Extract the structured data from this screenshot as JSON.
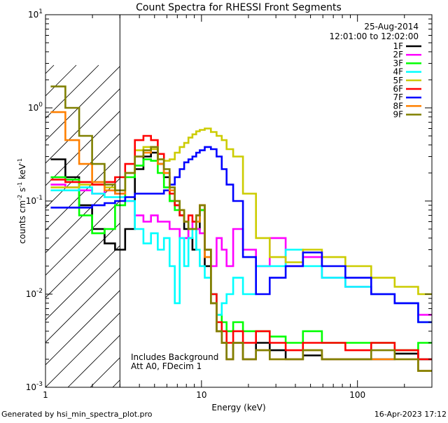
{
  "chart_data": {
    "type": "line",
    "title": "Count Spectra for RHESSI Front Segments",
    "xlabel": "Energy (keV)",
    "ylabel_parts": [
      "counts cm",
      "-2",
      " s",
      "-1",
      " keV",
      "-1"
    ],
    "xlim": [
      1.0,
      300.0
    ],
    "ylim": [
      0.001,
      10.0
    ],
    "x_scale": "log",
    "y_scale": "log",
    "x_tick_labels": [
      {
        "value": 1,
        "label": "1"
      },
      {
        "value": 10,
        "label": "10"
      },
      {
        "value": 100,
        "label": "100"
      }
    ],
    "y_tick_labels": [
      {
        "value": 0.001,
        "base": "10",
        "exp": "-3"
      },
      {
        "value": 0.01,
        "base": "10",
        "exp": "-2"
      },
      {
        "value": 0.1,
        "base": "10",
        "exp": "-1"
      },
      {
        "value": 1,
        "base": "10",
        "exp": "0"
      },
      {
        "value": 10,
        "base": "10",
        "exp": "1"
      }
    ],
    "hatched_region_keV": [
      1.0,
      3.0
    ],
    "date": "25-Aug-2014",
    "time_range": "12:01:00 to 12:02:00",
    "annotations": [
      "Includes Background",
      "Att A0, FDecim 1"
    ],
    "series": [
      {
        "name": "1F",
        "color": "#000000",
        "x": [
          1.2,
          1.5,
          1.8,
          2.2,
          2.6,
          3.0,
          3.5,
          4.0,
          4.5,
          5.0,
          5.5,
          6.0,
          6.5,
          7.0,
          7.5,
          8.0,
          8.5,
          9.0,
          9.5,
          10,
          11,
          12,
          13,
          14,
          15,
          17,
          20,
          25,
          30,
          40,
          50,
          70,
          100,
          150,
          200,
          300
        ],
        "y": [
          0.28,
          0.18,
          0.09,
          0.05,
          0.035,
          0.03,
          0.05,
          0.22,
          0.3,
          0.33,
          0.25,
          0.18,
          0.1,
          0.09,
          0.07,
          0.05,
          0.04,
          0.03,
          0.05,
          0.08,
          0.02,
          0.008,
          0.004,
          0.003,
          0.002,
          0.003,
          0.002,
          0.003,
          0.0025,
          0.002,
          0.0022,
          0.002,
          0.002,
          0.002,
          0.0023,
          0.002
        ]
      },
      {
        "name": "2F",
        "color": "#ff00ff",
        "x": [
          1.2,
          1.5,
          1.8,
          2.2,
          2.6,
          3.0,
          3.5,
          4.0,
          4.5,
          5.0,
          5.5,
          6.0,
          6.5,
          7.0,
          7.5,
          8.0,
          8.5,
          9.0,
          9.5,
          10,
          11,
          12,
          13,
          14,
          15,
          17,
          20,
          25,
          30,
          40,
          50,
          70,
          100,
          150,
          200,
          300
        ],
        "y": [
          0.15,
          0.14,
          0.13,
          0.12,
          0.13,
          0.12,
          0.1,
          0.07,
          0.06,
          0.07,
          0.06,
          0.06,
          0.05,
          0.05,
          0.04,
          0.04,
          0.05,
          0.06,
          0.05,
          0.045,
          0.03,
          0.02,
          0.04,
          0.03,
          0.02,
          0.05,
          0.03,
          0.02,
          0.04,
          0.02,
          0.025,
          0.015,
          0.012,
          0.01,
          0.008,
          0.006
        ]
      },
      {
        "name": "3F",
        "color": "#00ff00",
        "x": [
          1.2,
          1.5,
          1.8,
          2.2,
          2.6,
          3.0,
          3.5,
          4.0,
          4.5,
          5.0,
          5.5,
          6.0,
          6.5,
          7.0,
          7.5,
          8.0,
          8.5,
          9.0,
          9.5,
          10,
          11,
          12,
          13,
          14,
          15,
          17,
          20,
          25,
          30,
          40,
          50,
          70,
          100,
          150,
          200,
          300
        ],
        "y": [
          0.18,
          0.17,
          0.07,
          0.045,
          0.05,
          0.09,
          0.18,
          0.24,
          0.28,
          0.27,
          0.2,
          0.14,
          0.1,
          0.08,
          0.07,
          0.06,
          0.05,
          0.05,
          0.06,
          0.08,
          0.03,
          0.01,
          0.006,
          0.005,
          0.004,
          0.005,
          0.004,
          0.004,
          0.0035,
          0.003,
          0.004,
          0.003,
          0.003,
          0.003,
          0.0025,
          0.003
        ]
      },
      {
        "name": "4F",
        "color": "#00ffff",
        "x": [
          1.2,
          1.5,
          1.8,
          2.2,
          2.6,
          3.0,
          3.5,
          4.0,
          4.5,
          5.0,
          5.5,
          6.0,
          6.5,
          7.0,
          7.5,
          8.0,
          8.5,
          9.0,
          9.5,
          10,
          11,
          12,
          13,
          14,
          15,
          17,
          20,
          25,
          30,
          40,
          50,
          70,
          100,
          150,
          200,
          300
        ],
        "y": [
          0.13,
          0.13,
          0.14,
          0.12,
          0.11,
          0.11,
          0.1,
          0.05,
          0.035,
          0.045,
          0.03,
          0.04,
          0.02,
          0.008,
          0.04,
          0.02,
          0.04,
          0.05,
          0.03,
          0.02,
          0.015,
          0.01,
          0.006,
          0.008,
          0.01,
          0.015,
          0.01,
          0.02,
          0.02,
          0.03,
          0.02,
          0.015,
          0.012,
          0.01,
          0.008,
          0.005
        ]
      },
      {
        "name": "5F",
        "color": "#cccc00",
        "x": [
          1.2,
          1.5,
          1.8,
          2.2,
          2.6,
          3.0,
          3.5,
          4.0,
          4.5,
          5.0,
          5.5,
          6.0,
          6.5,
          7.0,
          7.5,
          8.0,
          8.5,
          9.0,
          9.5,
          10,
          11,
          12,
          13,
          14,
          15,
          17,
          20,
          25,
          30,
          40,
          50,
          70,
          100,
          150,
          200,
          300
        ],
        "y": [
          0.14,
          0.14,
          0.15,
          0.15,
          0.14,
          0.13,
          0.2,
          0.35,
          0.38,
          0.36,
          0.28,
          0.27,
          0.28,
          0.33,
          0.38,
          0.42,
          0.48,
          0.52,
          0.56,
          0.58,
          0.6,
          0.55,
          0.5,
          0.45,
          0.36,
          0.3,
          0.12,
          0.04,
          0.025,
          0.022,
          0.03,
          0.025,
          0.02,
          0.015,
          0.012,
          0.01
        ]
      },
      {
        "name": "6F",
        "color": "#ff0000",
        "x": [
          1.2,
          1.5,
          1.8,
          2.2,
          2.6,
          3.0,
          3.5,
          4.0,
          4.5,
          5.0,
          5.5,
          6.0,
          6.5,
          7.0,
          7.5,
          8.0,
          8.5,
          9.0,
          9.5,
          10,
          11,
          12,
          13,
          14,
          15,
          17,
          20,
          25,
          30,
          40,
          50,
          70,
          100,
          150,
          200,
          300
        ],
        "y": [
          0.17,
          0.16,
          0.16,
          0.15,
          0.16,
          0.18,
          0.25,
          0.45,
          0.5,
          0.45,
          0.32,
          0.2,
          0.12,
          0.09,
          0.07,
          0.06,
          0.07,
          0.06,
          0.07,
          0.09,
          0.03,
          0.01,
          0.005,
          0.004,
          0.003,
          0.004,
          0.003,
          0.004,
          0.003,
          0.0025,
          0.003,
          0.003,
          0.0025,
          0.003,
          0.0025,
          0.002
        ]
      },
      {
        "name": "7F",
        "color": "#0000ff",
        "x": [
          1.2,
          1.5,
          1.8,
          2.2,
          2.6,
          3.0,
          3.5,
          4.0,
          4.5,
          5.0,
          5.5,
          6.0,
          6.5,
          7.0,
          7.5,
          8.0,
          8.5,
          9.0,
          9.5,
          10,
          11,
          12,
          13,
          14,
          15,
          17,
          20,
          25,
          30,
          40,
          50,
          70,
          100,
          150,
          200,
          300
        ],
        "y": [
          0.085,
          0.085,
          0.085,
          0.09,
          0.095,
          0.1,
          0.11,
          0.12,
          0.12,
          0.12,
          0.12,
          0.13,
          0.15,
          0.18,
          0.22,
          0.26,
          0.28,
          0.3,
          0.33,
          0.35,
          0.38,
          0.36,
          0.3,
          0.22,
          0.15,
          0.1,
          0.025,
          0.01,
          0.015,
          0.02,
          0.028,
          0.02,
          0.015,
          0.01,
          0.008,
          0.005
        ]
      },
      {
        "name": "8F",
        "color": "#ff8000",
        "x": [
          1.2,
          1.5,
          1.8,
          2.2,
          2.6,
          3.0,
          3.5,
          4.0,
          4.5,
          5.0,
          5.5,
          6.0,
          6.5,
          7.0,
          7.5,
          8.0,
          8.5,
          9.0,
          9.5,
          10,
          11,
          12,
          13,
          14,
          15,
          17,
          20,
          25,
          30,
          40,
          50,
          70,
          100,
          150,
          200,
          300
        ],
        "y": [
          0.9,
          0.45,
          0.25,
          0.16,
          0.13,
          0.12,
          0.2,
          0.3,
          0.33,
          0.38,
          0.25,
          0.2,
          0.13,
          0.1,
          0.08,
          0.06,
          0.05,
          0.05,
          0.06,
          0.09,
          0.025,
          0.008,
          0.004,
          0.003,
          0.002,
          0.003,
          0.002,
          0.0025,
          0.002,
          0.002,
          0.0025,
          0.002,
          0.002,
          0.002,
          0.002,
          0.0015
        ]
      },
      {
        "name": "9F",
        "color": "#808000",
        "x": [
          1.2,
          1.5,
          1.8,
          2.2,
          2.6,
          3.0,
          3.5,
          4.0,
          4.5,
          5.0,
          5.5,
          6.0,
          6.5,
          7.0,
          7.5,
          8.0,
          8.5,
          9.0,
          9.5,
          10,
          11,
          12,
          13,
          14,
          15,
          17,
          20,
          25,
          30,
          40,
          50,
          70,
          100,
          150,
          200,
          300
        ],
        "y": [
          1.7,
          1.0,
          0.5,
          0.25,
          0.15,
          0.13,
          0.2,
          0.3,
          0.35,
          0.38,
          0.28,
          0.22,
          0.14,
          0.1,
          0.08,
          0.06,
          0.05,
          0.05,
          0.07,
          0.09,
          0.03,
          0.008,
          0.004,
          0.003,
          0.002,
          0.003,
          0.002,
          0.0025,
          0.002,
          0.002,
          0.0025,
          0.002,
          0.002,
          0.0025,
          0.002,
          0.0015
        ]
      }
    ]
  },
  "footer": {
    "generated_by": "Generated by hsi_min_spectra_plot.pro",
    "generated_date": "16-Apr-2023 17:12"
  }
}
